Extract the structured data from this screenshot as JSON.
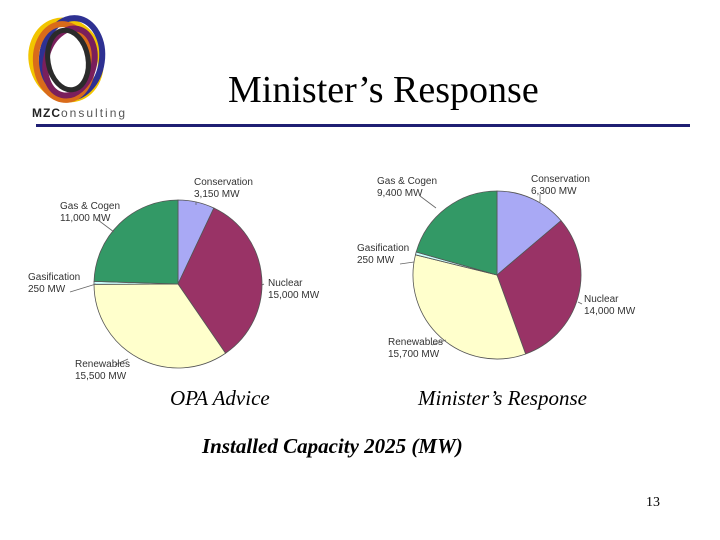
{
  "slide": {
    "title": "Minister’s Response",
    "subtitle": "Installed Capacity 2025 (MW)",
    "page_number": "13"
  },
  "logo": {
    "text_bold": "MZC",
    "text_light": "onsulting",
    "ring_colors": [
      "#f2c500",
      "#2e3192",
      "#d96b1a",
      "#7a1f5c",
      "#2b2b2b"
    ]
  },
  "chart_data": [
    {
      "type": "pie",
      "title": "OPA Advice",
      "unit": "MW",
      "series": [
        {
          "label": "Conservation",
          "value_label": "3,150 MW",
          "value": 3150,
          "color": "#a9a9f5"
        },
        {
          "label": "Nuclear",
          "value_label": "15,000 MW",
          "value": 15000,
          "color": "#993366"
        },
        {
          "label": "Renewables",
          "value_label": "15,500 MW",
          "value": 15500,
          "color": "#ffffcc"
        },
        {
          "label": "Gasification",
          "value_label": "250 MW",
          "value": 250,
          "color": "#ccffff"
        },
        {
          "label": "Gas & Cogen",
          "value_label": "11,000 MW",
          "value": 11000,
          "color": "#339966"
        }
      ]
    },
    {
      "type": "pie",
      "title": "Minister’s Response",
      "unit": "MW",
      "series": [
        {
          "label": "Conservation",
          "value_label": "6,300 MW",
          "value": 6300,
          "color": "#a9a9f5"
        },
        {
          "label": "Nuclear",
          "value_label": "14,000 MW",
          "value": 14000,
          "color": "#993366"
        },
        {
          "label": "Renewables",
          "value_label": "15,700 MW",
          "value": 15700,
          "color": "#ffffcc"
        },
        {
          "label": "Gasification",
          "value_label": "250 MW",
          "value": 250,
          "color": "#ccffff"
        },
        {
          "label": "Gas & Cogen",
          "value_label": "9,400 MW",
          "value": 9400,
          "color": "#339966"
        }
      ]
    }
  ]
}
